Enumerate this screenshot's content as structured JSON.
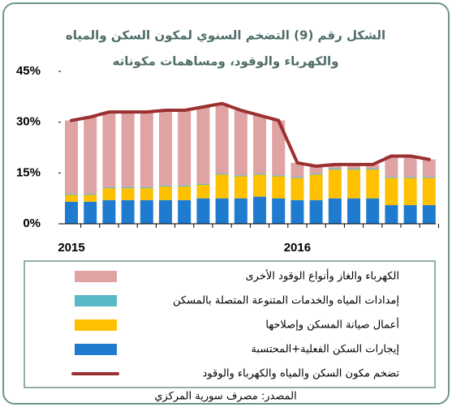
{
  "chart_data": {
    "type": "stacked_bar_line",
    "title": [
      "الشكل رقم (9) التضخم السنوي لمكون السكن والمياه",
      "والكهرباء والوقود، ومساهمات مكوناته"
    ],
    "source": "المصدر: مصرف سورية المركزي",
    "categories": [
      "2015",
      null,
      null,
      null,
      null,
      null,
      null,
      null,
      null,
      null,
      null,
      null,
      "2016",
      null,
      null,
      null,
      null,
      null,
      null,
      null
    ],
    "ylim": [
      0,
      45
    ],
    "yticks": [
      {
        "value": 0,
        "label": "0%"
      },
      {
        "value": 15,
        "label": "15%"
      },
      {
        "value": 30,
        "label": "30%"
      },
      {
        "value": 45,
        "label": "45%"
      }
    ],
    "series": [
      {
        "name": "إيجارات السكن الفعلية+المحتسبة",
        "color": "#1f7bd0",
        "values": [
          6.5,
          6.5,
          7,
          7,
          7,
          7,
          7,
          7.5,
          7.5,
          7.5,
          8,
          7.5,
          7,
          7,
          7.5,
          7.5,
          7.5,
          5.5,
          5.5,
          5.5
        ]
      },
      {
        "name": "أعمال صيانة المسكن وإصلاحها",
        "color": "#ffc000",
        "values": [
          2,
          2,
          3.5,
          3.5,
          3.5,
          4,
          4,
          4,
          7,
          6.5,
          6.5,
          6.5,
          6.5,
          7.5,
          8.5,
          8.5,
          8.5,
          8,
          8,
          8
        ]
      },
      {
        "name": "إمدادات المياه والخدمات المتنوعة المتصلة بالمسكن",
        "color": "#5bb8c9",
        "values": [
          0.3,
          0.3,
          0.3,
          0.3,
          0.3,
          0.3,
          0.3,
          0.3,
          0.3,
          0.3,
          0.3,
          0.3,
          0.3,
          0.3,
          0.3,
          0.3,
          0.3,
          0.3,
          0.3,
          0.3
        ]
      },
      {
        "name": "الكهرباء والغاز وأنواع الوقود الأخرى",
        "color": "#e0a3a3",
        "values": [
          21.7,
          22.7,
          22.2,
          22.2,
          22.2,
          22.2,
          22.2,
          22.7,
          20.7,
          19.2,
          17.2,
          16.2,
          4.2,
          2.2,
          1.2,
          1.2,
          1.2,
          6.2,
          6.2,
          5.2
        ]
      },
      {
        "name": "تضخم مكون السكن والمياه والكهرباء والوقود",
        "color": "#9b3030",
        "type": "line",
        "values": [
          30.5,
          31.5,
          33,
          33,
          33,
          33.5,
          33.5,
          34.5,
          35.5,
          33.5,
          32,
          30.5,
          18,
          17,
          17.5,
          17.5,
          17.5,
          20,
          20,
          19
        ]
      }
    ]
  }
}
